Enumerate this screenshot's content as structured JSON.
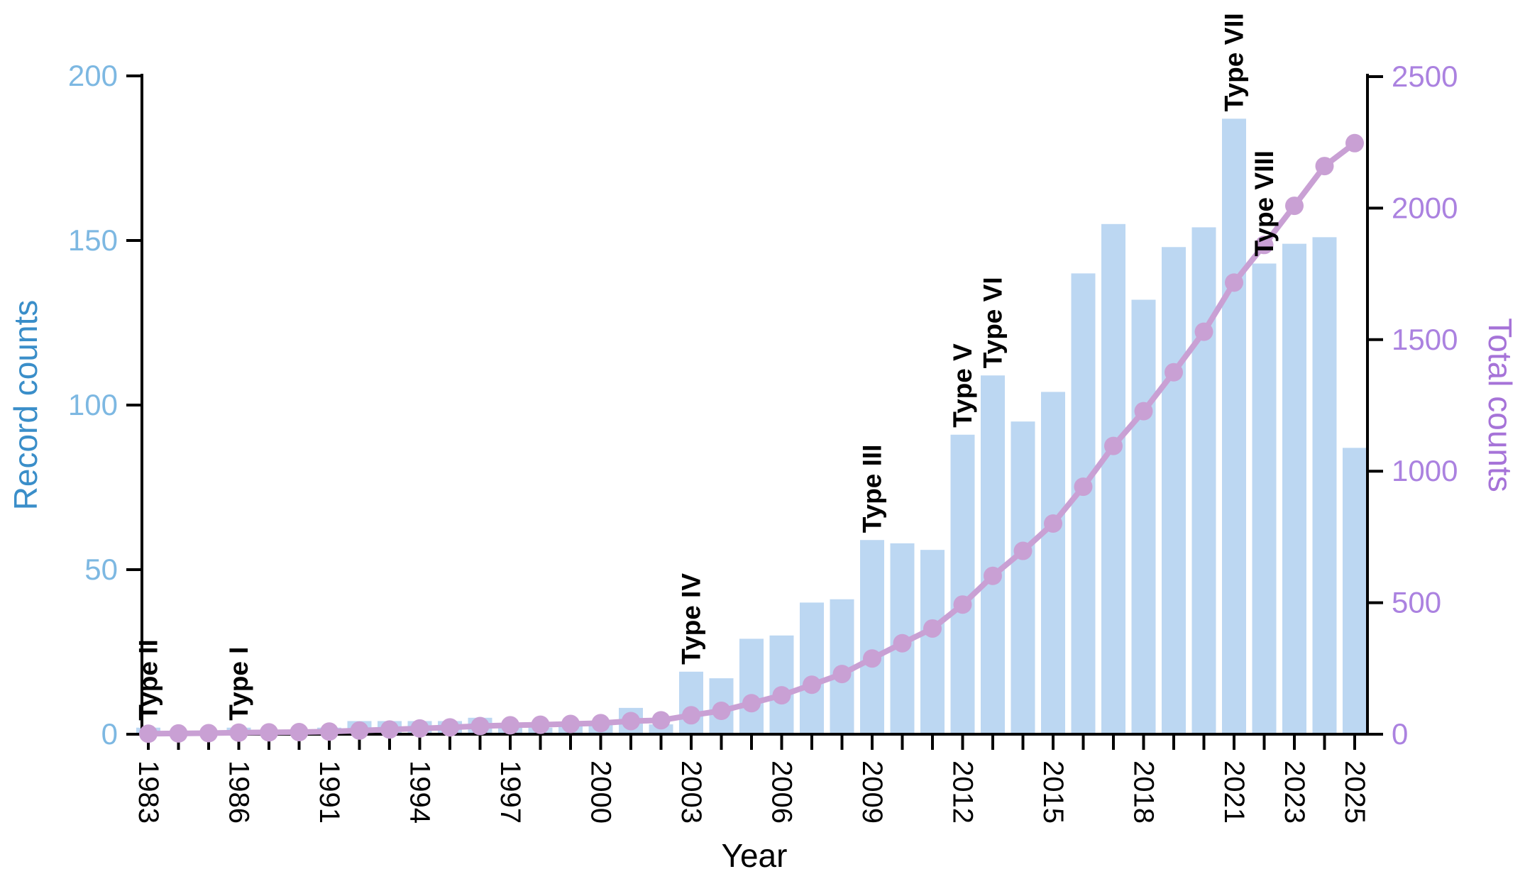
{
  "chart_data": {
    "type": "bar-line-combo",
    "title": "",
    "xlabel": "Year",
    "ylabel_left": "Record counts",
    "ylabel_right": "Total counts",
    "categories": [
      "1983",
      "1984",
      "1985",
      "1986",
      "1988",
      "1990",
      "1991",
      "1992",
      "1993",
      "1994",
      "1995",
      "1996",
      "1997",
      "1998",
      "1999",
      "2000",
      "2001",
      "2002",
      "2003",
      "2004",
      "2005",
      "2006",
      "2007",
      "2008",
      "2009",
      "2010",
      "2011",
      "2012",
      "2013",
      "2014",
      "2015",
      "2016",
      "2017",
      "2018",
      "2019",
      "2020",
      "2021",
      "2022",
      "2023",
      "2024",
      "2025"
    ],
    "series": [
      {
        "name": "Record counts",
        "type": "bar",
        "axis": "left",
        "values": [
          2,
          1,
          1,
          2,
          1,
          1,
          2,
          4,
          4,
          4,
          4,
          5,
          3,
          2,
          3,
          3,
          8,
          3,
          19,
          17,
          29,
          30,
          40,
          41,
          59,
          58,
          56,
          91,
          109,
          95,
          104,
          140,
          155,
          132,
          148,
          154,
          187,
          143,
          149,
          151,
          87
        ]
      },
      {
        "name": "Total counts",
        "type": "line",
        "axis": "right",
        "values": [
          2,
          3,
          4,
          6,
          7,
          8,
          10,
          14,
          18,
          22,
          26,
          31,
          34,
          36,
          39,
          42,
          50,
          53,
          72,
          89,
          118,
          148,
          188,
          229,
          288,
          346,
          402,
          493,
          602,
          697,
          801,
          941,
          1096,
          1228,
          1376,
          1530,
          1717,
          1860,
          2009,
          2160,
          2247
        ]
      }
    ],
    "x_tick_indices": [
      0,
      3,
      6,
      9,
      12,
      15,
      18,
      21,
      24,
      27,
      30,
      33,
      36,
      38,
      40
    ],
    "x_tick_labels": [
      "1983",
      "1986",
      "1991",
      "1994",
      "1997",
      "2000",
      "2003",
      "2006",
      "2009",
      "2012",
      "2015",
      "2018",
      "2021",
      "2023",
      "2025"
    ],
    "left_ylim": [
      0,
      200
    ],
    "right_ylim": [
      0,
      2500
    ],
    "left_ticks": [
      "0",
      "50",
      "100",
      "150",
      "200"
    ],
    "right_ticks": [
      "0",
      "500",
      "1000",
      "1500",
      "2000",
      "2500"
    ],
    "grid": "off",
    "legend": "none",
    "annotations": [
      {
        "label": "Type II",
        "category": "1983"
      },
      {
        "label": "Type I",
        "category": "1986"
      },
      {
        "label": "Type IV",
        "category": "2003"
      },
      {
        "label": "Type III",
        "category": "2009"
      },
      {
        "label": "Type V",
        "category": "2012"
      },
      {
        "label": "Type VI",
        "category": "2013"
      },
      {
        "label": "Type VII",
        "category": "2021"
      },
      {
        "label": "Type VIII",
        "category": "2022"
      }
    ],
    "colors": {
      "bar_fill": "#bcd7f2",
      "line": "#c9a0d4",
      "marker": "#c9a0d4",
      "left_axis_label": "#3a8ec9",
      "left_tick_label": "#7db8e2",
      "right_axis_label": "#a673d8",
      "right_tick_label": "#ab82e0",
      "annotation_text": "#000000",
      "axis_line": "#000000",
      "x_tick_label": "#000000"
    }
  }
}
